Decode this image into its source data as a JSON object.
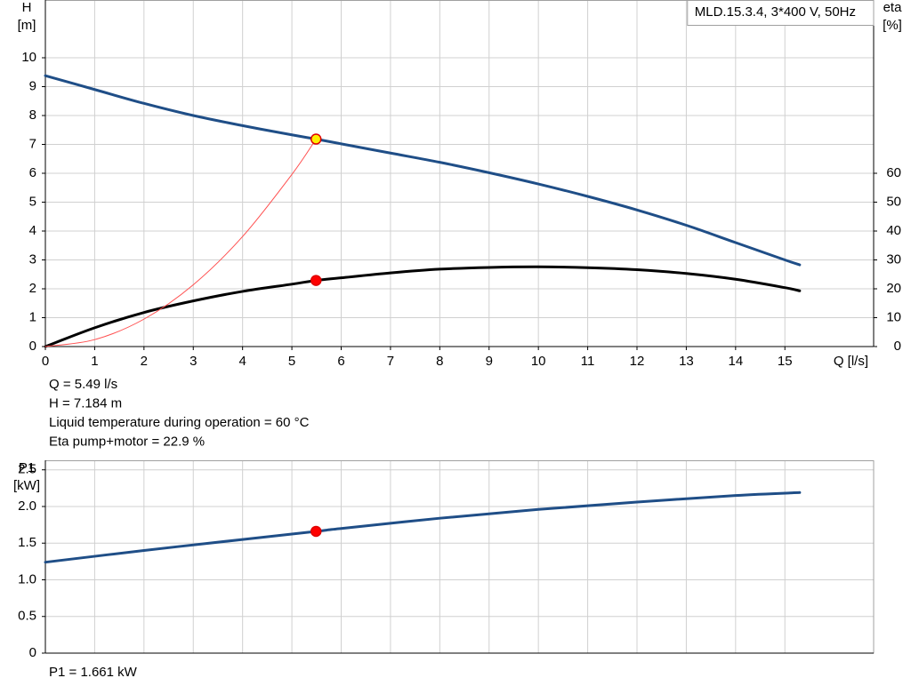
{
  "chart_data": [
    {
      "type": "line",
      "title": "MLD.15.3.4, 3*400 V, 50Hz",
      "ylabel": "H",
      "yunit": "[m]",
      "y2label": "eta",
      "y2unit": "[%]",
      "xlabel": "Q [l/s]",
      "xlim": [
        0,
        16.8
      ],
      "xticks": [
        0,
        1,
        2,
        3,
        4,
        5,
        6,
        7,
        8,
        9,
        10,
        11,
        12,
        13,
        14,
        15
      ],
      "ylim": [
        0,
        12
      ],
      "yticks": [
        0,
        1,
        2,
        3,
        4,
        5,
        6,
        7,
        8,
        9,
        10
      ],
      "y2lim": [
        0,
        120
      ],
      "y2ticks": [
        0,
        10,
        20,
        30,
        40,
        50,
        60
      ],
      "grid": true,
      "series": [
        {
          "color": "#1f4e87",
          "width": 3,
          "x": [
            0,
            1,
            2,
            3,
            4,
            5,
            5.49,
            6,
            7,
            8,
            9,
            10,
            11,
            12,
            13,
            14,
            15,
            15.3
          ],
          "values": [
            9.38,
            8.9,
            8.42,
            8.0,
            7.65,
            7.33,
            7.184,
            7.02,
            6.7,
            6.38,
            6.02,
            5.63,
            5.2,
            4.73,
            4.2,
            3.6,
            3.0,
            2.83
          ]
        },
        {
          "color": "#000000",
          "width": 3,
          "axis": "y2",
          "x": [
            0,
            1,
            2,
            3,
            4,
            5,
            5.49,
            6,
            7,
            8,
            9,
            10,
            11,
            12,
            13,
            14,
            15,
            15.3
          ],
          "values": [
            0,
            6.5,
            11.8,
            15.8,
            19.1,
            21.6,
            22.9,
            23.8,
            25.5,
            26.8,
            27.4,
            27.6,
            27.3,
            26.6,
            25.3,
            23.3,
            20.4,
            19.3
          ]
        },
        {
          "color": "#ff5050",
          "width": 1,
          "x": [
            0,
            1,
            2,
            3,
            4,
            5,
            5.49
          ],
          "values": [
            0,
            0.24,
            0.95,
            2.14,
            3.81,
            5.96,
            7.184
          ]
        }
      ],
      "markers": [
        {
          "x": 5.49,
          "value": 7.184,
          "color": "#ffee00",
          "edge": "#e00000"
        },
        {
          "x": 5.49,
          "value": 22.9,
          "axis": "y2",
          "color": "#ff0000",
          "edge": "#e00000"
        }
      ],
      "annotations": [
        "Q = 5.49 l/s",
        "H = 7.184 m",
        "Liquid temperature during operation = 60 °C",
        "Eta pump+motor = 22.9 %"
      ]
    },
    {
      "type": "line",
      "ylabel": "P1",
      "yunit": "[kW]",
      "xlim": [
        0,
        16.8
      ],
      "ylim": [
        0,
        2.63
      ],
      "yticks": [
        0,
        0.5,
        {
          "value": 1,
          "label": "1.0"
        },
        1.5,
        {
          "value": 2,
          "label": "2.0"
        },
        2.5
      ],
      "grid": true,
      "series": [
        {
          "color": "#1f4e87",
          "width": 3,
          "x": [
            0,
            2,
            4,
            5.49,
            6,
            8,
            10,
            12,
            14,
            15.3
          ],
          "values": [
            1.24,
            1.4,
            1.55,
            1.661,
            1.7,
            1.84,
            1.96,
            2.06,
            2.15,
            2.19
          ]
        }
      ],
      "markers": [
        {
          "x": 5.49,
          "value": 1.661,
          "color": "#ff0000",
          "edge": "#e00000"
        }
      ],
      "annotations": [
        "P1 = 1.661 kW"
      ]
    }
  ]
}
